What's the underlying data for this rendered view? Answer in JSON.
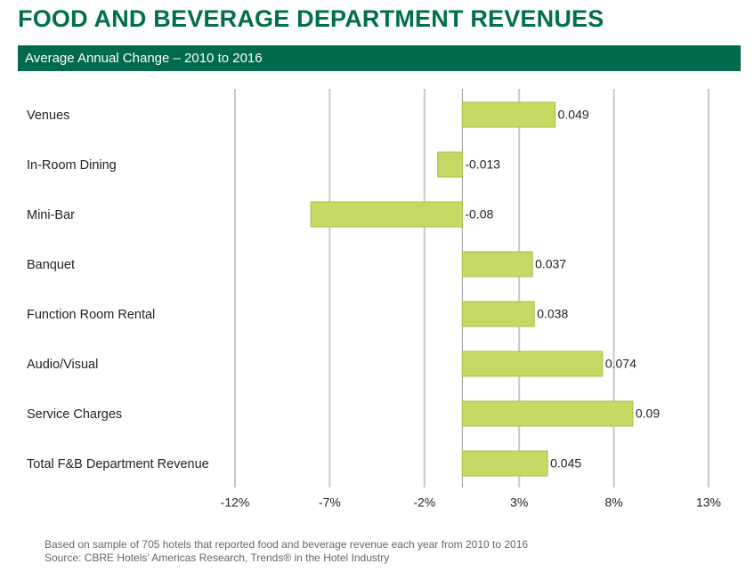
{
  "chart_data": {
    "type": "bar",
    "orientation": "horizontal",
    "title": "FOOD AND BEVERAGE DEPARTMENT REVENUES",
    "subtitle": "Average Annual Change – 2010 to 2016",
    "categories": [
      "Venues",
      "In-Room Dining",
      "Mini-Bar",
      "Banquet",
      "Function Room Rental",
      "Audio/Visual",
      "Service Charges",
      "Total F&B Department Revenue"
    ],
    "values": [
      0.049,
      -0.013,
      -0.08,
      0.037,
      0.038,
      0.074,
      0.09,
      0.045
    ],
    "color": "#c5d963",
    "xlim": [
      -0.12,
      0.13
    ],
    "xticks": [
      {
        "value": -0.12,
        "label": "-12%"
      },
      {
        "value": -0.07,
        "label": "-7%"
      },
      {
        "value": -0.02,
        "label": "-2%"
      },
      {
        "value": 0.03,
        "label": "3%"
      },
      {
        "value": 0.08,
        "label": "8%"
      },
      {
        "value": 0.13,
        "label": "13%"
      }
    ],
    "grid": true,
    "footnotes": [
      "Based on sample of 705 hotels that reported food and beverage revenue each year from 2010 to 2016",
      "Source: CBRE Hotels’ Americas Research, Trends® in the Hotel Industry"
    ]
  }
}
